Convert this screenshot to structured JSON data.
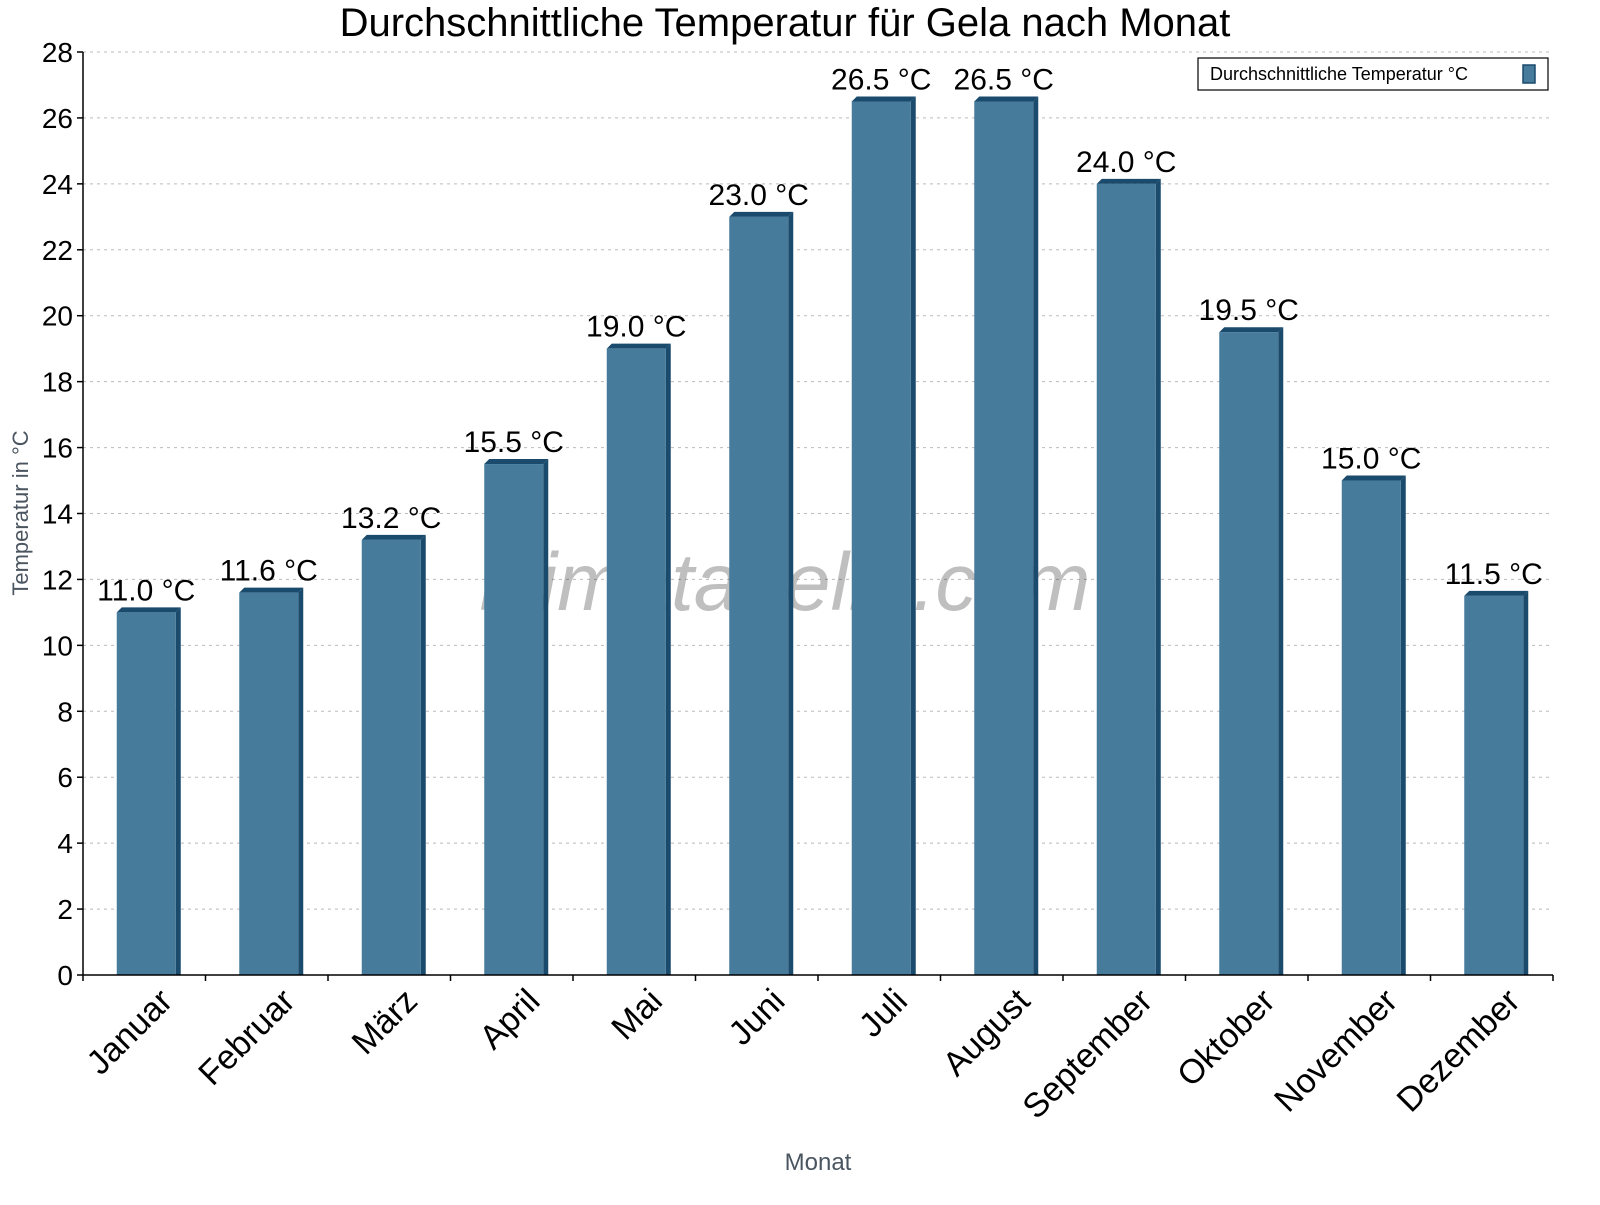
{
  "chart_data": {
    "type": "bar",
    "title": "Durchschnittliche Temperatur für Gela nach Monat",
    "xlabel": "Monat",
    "ylabel": "Temperatur in °C",
    "ylim": [
      0,
      28
    ],
    "yticks": [
      0,
      2,
      4,
      6,
      8,
      10,
      12,
      14,
      16,
      18,
      20,
      22,
      24,
      26,
      28
    ],
    "grid": true,
    "legend_placement": "top-right",
    "categories": [
      "Januar",
      "Februar",
      "März",
      "April",
      "Mai",
      "Juni",
      "Juli",
      "August",
      "September",
      "Oktober",
      "November",
      "Dezember"
    ],
    "series": [
      {
        "name": "Durchschnittliche Temperatur °C",
        "values": [
          11.0,
          11.6,
          13.2,
          15.5,
          19.0,
          23.0,
          26.5,
          26.5,
          24.0,
          19.5,
          15.0,
          11.5
        ],
        "labels": [
          "11.0 °C",
          "11.6 °C",
          "13.2 °C",
          "15.5 °C",
          "19.0 °C",
          "23.0 °C",
          "26.5 °C",
          "26.5 °C",
          "24.0 °C",
          "19.5 °C",
          "15.0 °C",
          "11.5 °C"
        ]
      }
    ],
    "colors": {
      "bar": "#467b9c",
      "bar_shade": "#1a4a6c"
    }
  },
  "watermark": "klimatabelle.com"
}
